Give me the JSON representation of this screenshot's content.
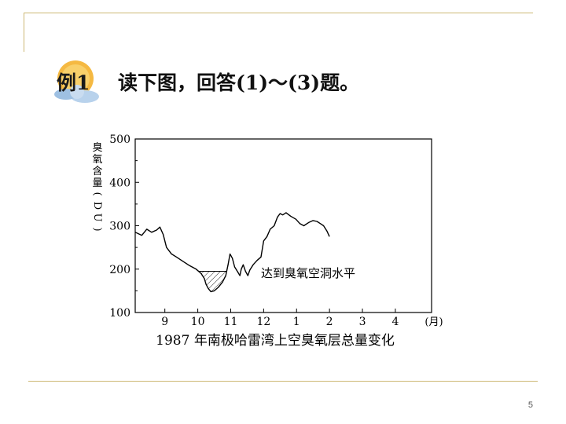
{
  "slide": {
    "badge_label": "例1",
    "question": "读下图，回答(1)～(3)题。",
    "page_number": "5"
  },
  "chart_data": {
    "type": "line",
    "title": "1987 年南极哈雷湾上空臭氧层总量变化",
    "ylabel": "臭氧含量(DU)",
    "xlabel": "(月)",
    "ylim": [
      100,
      500
    ],
    "yticks": [
      100,
      200,
      300,
      400,
      500
    ],
    "xticks": [
      {
        "month": 9,
        "label": "9"
      },
      {
        "month": 10,
        "label": "10"
      },
      {
        "month": 11,
        "label": "11"
      },
      {
        "month": 12,
        "label": "12"
      },
      {
        "month": 13,
        "label": "1"
      },
      {
        "month": 14,
        "label": "2"
      },
      {
        "month": 15,
        "label": "3"
      },
      {
        "month": 16,
        "label": "4"
      }
    ],
    "xlim": [
      8.1,
      17.1
    ],
    "threshold": 195,
    "annotation": "达到臭氧空洞水平",
    "series": [
      {
        "points": [
          [
            8.1,
            285
          ],
          [
            8.3,
            278
          ],
          [
            8.45,
            292
          ],
          [
            8.6,
            285
          ],
          [
            8.75,
            290
          ],
          [
            8.85,
            297
          ],
          [
            8.95,
            280
          ],
          [
            9.05,
            250
          ],
          [
            9.2,
            235
          ],
          [
            9.35,
            228
          ],
          [
            9.55,
            218
          ],
          [
            9.75,
            208
          ],
          [
            9.95,
            200
          ],
          [
            10.1,
            190
          ],
          [
            10.2,
            178
          ],
          [
            10.25,
            165
          ],
          [
            10.32,
            155
          ],
          [
            10.4,
            148
          ],
          [
            10.5,
            150
          ],
          [
            10.62,
            158
          ],
          [
            10.75,
            170
          ],
          [
            10.85,
            185
          ],
          [
            10.92,
            210
          ],
          [
            10.98,
            235
          ],
          [
            11.05,
            225
          ],
          [
            11.12,
            205
          ],
          [
            11.2,
            195
          ],
          [
            11.28,
            185
          ],
          [
            11.32,
            200
          ],
          [
            11.38,
            210
          ],
          [
            11.45,
            195
          ],
          [
            11.52,
            185
          ],
          [
            11.58,
            198
          ],
          [
            11.68,
            210
          ],
          [
            11.8,
            220
          ],
          [
            11.92,
            228
          ],
          [
            12.0,
            265
          ],
          [
            12.1,
            275
          ],
          [
            12.2,
            292
          ],
          [
            12.32,
            300
          ],
          [
            12.42,
            320
          ],
          [
            12.5,
            328
          ],
          [
            12.58,
            325
          ],
          [
            12.68,
            330
          ],
          [
            12.82,
            322
          ],
          [
            12.98,
            315
          ],
          [
            13.1,
            305
          ],
          [
            13.22,
            300
          ],
          [
            13.38,
            308
          ],
          [
            13.5,
            312
          ],
          [
            13.62,
            310
          ],
          [
            13.72,
            305
          ],
          [
            13.82,
            300
          ],
          [
            13.92,
            288
          ],
          [
            14.0,
            275
          ]
        ]
      }
    ]
  }
}
